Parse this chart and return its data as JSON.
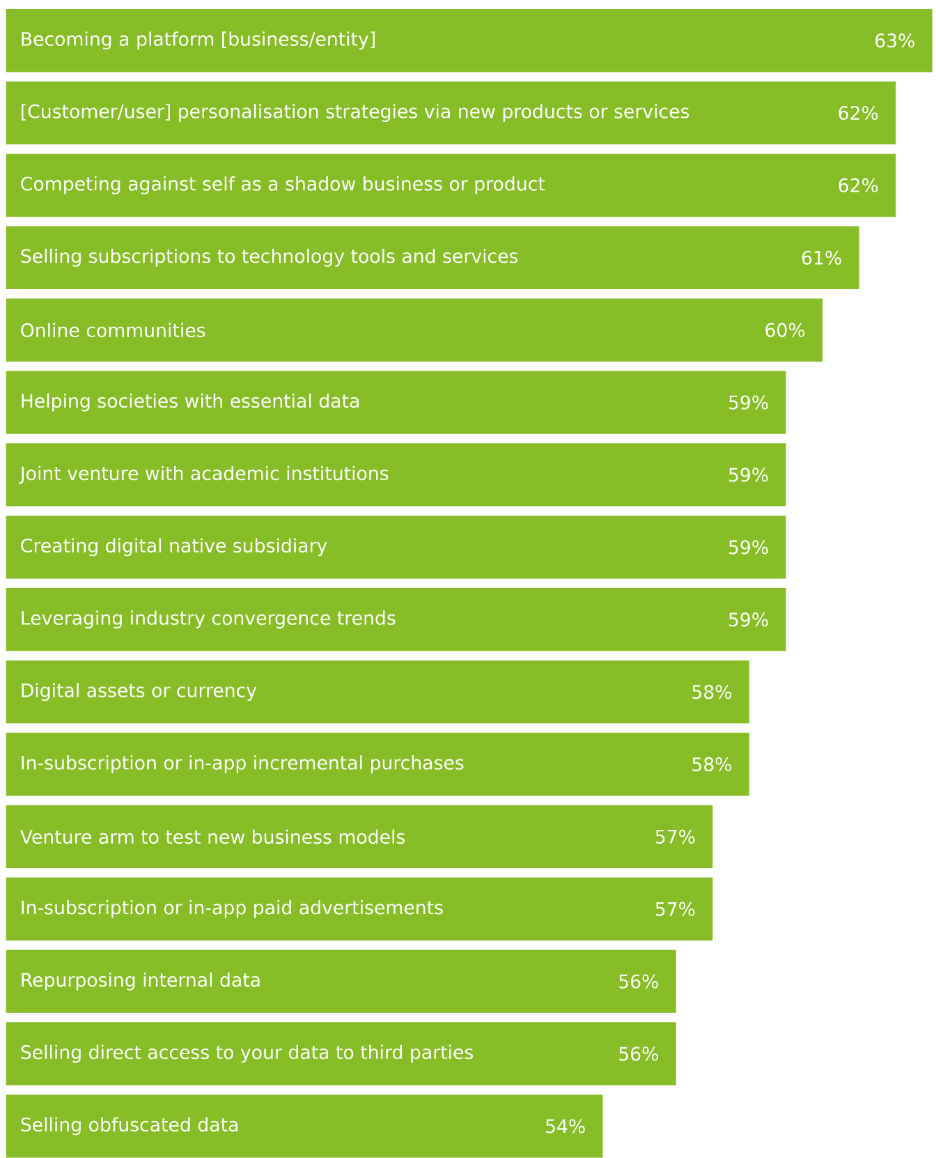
{
  "chart_data": {
    "type": "bar",
    "orientation": "horizontal",
    "categories": [
      "Becoming a platform [business/entity]",
      "[Customer/user] personalisation strategies via new products or services",
      "Competing against self as a shadow business or product",
      "Selling subscriptions to technology tools and services",
      "Online communities",
      "Helping societies with essential data",
      "Joint venture with academic institutions",
      "Creating digital native subsidiary",
      "Leveraging industry convergence trends",
      "Digital assets or currency",
      "In-subscription or in-app incremental purchases",
      "Venture arm to test new business models",
      "In-subscription or in-app paid advertisements",
      "Repurposing internal data",
      "Selling direct access to your data to third parties",
      "Selling obfuscated data"
    ],
    "values": [
      63,
      62,
      62,
      61,
      60,
      59,
      59,
      59,
      59,
      58,
      58,
      57,
      57,
      56,
      56,
      54
    ],
    "value_labels": [
      "63%",
      "62%",
      "62%",
      "61%",
      "60%",
      "59%",
      "59%",
      "59%",
      "59%",
      "58%",
      "58%",
      "57%",
      "57%",
      "56%",
      "56%",
      "54%"
    ],
    "color": "#86bc25",
    "xlim": [
      37.7,
      63.1
    ]
  }
}
